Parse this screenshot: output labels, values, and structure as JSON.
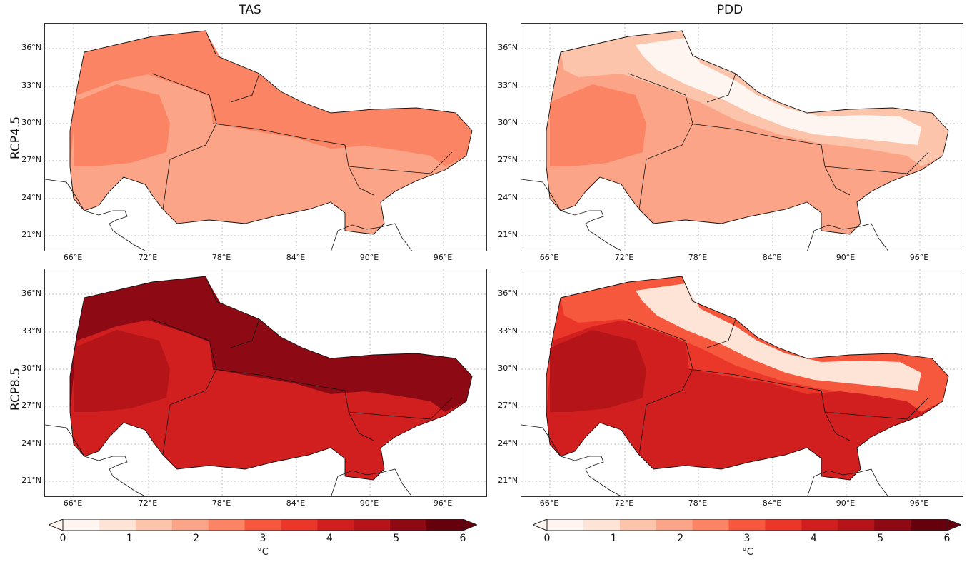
{
  "columns": [
    {
      "title": "TAS"
    },
    {
      "title": "PDD"
    }
  ],
  "rows": [
    {
      "label": "RCP4.5"
    },
    {
      "label": "RCP8.5"
    }
  ],
  "axes": {
    "lat_ticks": [
      "36°N",
      "33°N",
      "30°N",
      "27°N",
      "24°N",
      "21°N"
    ],
    "lon_ticks": [
      "66°E",
      "72°E",
      "78°E",
      "84°E",
      "90°E",
      "96°E"
    ]
  },
  "colorbar": {
    "ticks": [
      "0",
      "1",
      "2",
      "3",
      "4",
      "5",
      "6"
    ],
    "unit": "°C",
    "colors": [
      "#fff5f0",
      "#fee3d7",
      "#fcc5ab",
      "#fca487",
      "#fb8464",
      "#f6583e",
      "#eb362a",
      "#d11f20",
      "#b51419",
      "#8d0a14",
      "#67000d"
    ],
    "extend": "both"
  },
  "panels": [
    {
      "id": "tas-rcp45",
      "fill_level": "moderate"
    },
    {
      "id": "pdd-rcp45",
      "fill_level": "moderate-with-cold-mountains"
    },
    {
      "id": "tas-rcp85",
      "fill_level": "high"
    },
    {
      "id": "pdd-rcp85",
      "fill_level": "high-with-cold-mountains"
    }
  ]
}
